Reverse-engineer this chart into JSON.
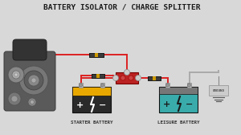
{
  "title": "BATTERY ISOLATOR / CHARGE SPLITTER",
  "bg_color": "#d8d8d8",
  "title_color": "#1a1a1a",
  "title_fontsize": 6.8,
  "starter_label": "STARTER BATTERY",
  "leisure_label": "LEISURE BATTERY",
  "ground_label": "GROUND",
  "wire_red": "#dd2222",
  "wire_gray": "#aaaaaa",
  "wire_lw": 1.4,
  "battery_starter_top": "#e8a800",
  "battery_starter_body": "#2a2a2a",
  "battery_leisure_top": "#777777",
  "battery_leisure_body": "#3aabab",
  "isolator_body": "#bb2222",
  "fuse_color": "#333333",
  "label_fontsize": 4.2,
  "ground_box_color": "#cccccc"
}
